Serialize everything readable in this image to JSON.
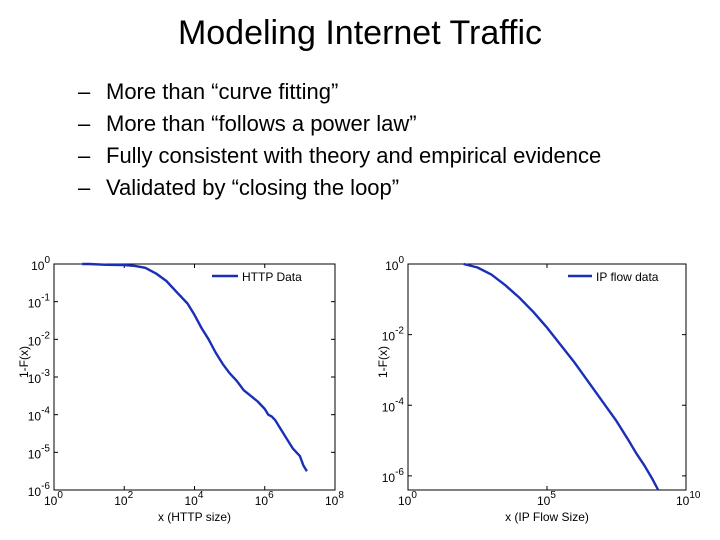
{
  "slide": {
    "title": "Modeling Internet Traffic",
    "bullets": [
      "More than “curve fitting”",
      "More than “follows a power law”",
      "Fully consistent with theory and empirical evidence",
      "Validated by “closing the loop”"
    ],
    "bullet_marker": "–"
  },
  "chart_data": [
    {
      "type": "line",
      "title": "",
      "xlabel": "x (HTTP size)",
      "ylabel": "1-F(x)",
      "xscale": "log",
      "yscale": "log",
      "xlim_exp": [
        0,
        8
      ],
      "ylim_exp": [
        -6,
        0
      ],
      "x_ticks": [
        0,
        2,
        4,
        6,
        8
      ],
      "y_ticks": [
        0,
        -1,
        -2,
        -3,
        -4,
        -5,
        -6
      ],
      "legend": {
        "position": "top-right"
      },
      "color": "#1a2fb8",
      "series": [
        {
          "name": "HTTP Data",
          "x_exp": [
            0.8,
            1.0,
            1.5,
            2.0,
            2.3,
            2.6,
            2.9,
            3.2,
            3.5,
            3.8,
            4.0,
            4.2,
            4.4,
            4.6,
            4.8,
            5.0,
            5.2,
            5.4,
            5.6,
            5.8,
            6.0,
            6.1,
            6.2,
            6.3,
            6.4,
            6.5,
            6.6,
            6.7,
            6.8,
            6.9,
            7.0,
            7.1,
            7.2
          ],
          "y_exp": [
            0.0,
            0.0,
            -0.02,
            -0.03,
            -0.05,
            -0.1,
            -0.25,
            -0.45,
            -0.75,
            -1.05,
            -1.35,
            -1.7,
            -2.0,
            -2.35,
            -2.65,
            -2.9,
            -3.1,
            -3.35,
            -3.5,
            -3.65,
            -3.85,
            -4.0,
            -4.05,
            -4.15,
            -4.3,
            -4.45,
            -4.6,
            -4.75,
            -4.9,
            -5.0,
            -5.1,
            -5.35,
            -5.5
          ]
        }
      ]
    },
    {
      "type": "line",
      "title": "",
      "xlabel": "x (IP Flow Size)",
      "ylabel": "1-F(x)",
      "xscale": "log",
      "yscale": "log",
      "xlim_exp": [
        0,
        10
      ],
      "ylim_exp": [
        -6.4,
        0
      ],
      "x_ticks": [
        0,
        5,
        10
      ],
      "y_ticks": [
        0,
        -2,
        -4,
        -6
      ],
      "legend": {
        "position": "top-right"
      },
      "color": "#1a2fb8",
      "series": [
        {
          "name": "IP flow data",
          "x_exp": [
            2.0,
            2.5,
            3.0,
            3.5,
            4.0,
            4.5,
            5.0,
            5.5,
            6.0,
            6.5,
            7.0,
            7.5,
            7.9,
            8.2,
            8.5,
            8.8,
            9.0
          ],
          "y_exp": [
            0.0,
            -0.1,
            -0.3,
            -0.6,
            -0.95,
            -1.35,
            -1.8,
            -2.3,
            -2.8,
            -3.35,
            -3.9,
            -4.45,
            -4.95,
            -5.35,
            -5.7,
            -6.1,
            -6.4
          ]
        }
      ]
    }
  ]
}
